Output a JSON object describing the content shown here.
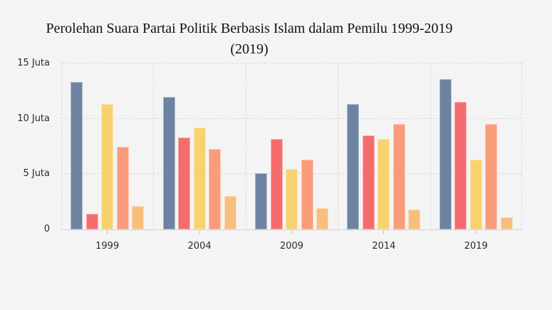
{
  "title": {
    "line1": "Perolehan Suara Partai Politik Berbasis Islam dalam Pemilu 1999-2019",
    "line2": "(2019)"
  },
  "chart_data": {
    "type": "bar",
    "title": "Perolehan Suara Partai Politik Berbasis Islam dalam Pemilu 1999-2019",
    "subtitle": "(2019)",
    "unit": "Juta",
    "categories": [
      "1999",
      "2004",
      "2009",
      "2014",
      "2019"
    ],
    "series": [
      {
        "name": "series-1",
        "color": "#6e83a2",
        "values": [
          13.3,
          12.0,
          5.1,
          11.3,
          13.6
        ]
      },
      {
        "name": "series-2",
        "color": "#f56c6c",
        "values": [
          1.4,
          8.3,
          8.2,
          8.5,
          11.5
        ]
      },
      {
        "name": "series-3",
        "color": "#f8d26e",
        "values": [
          11.3,
          9.2,
          5.5,
          8.2,
          6.3
        ]
      },
      {
        "name": "series-4",
        "color": "#fa9b7a",
        "values": [
          7.5,
          7.3,
          6.3,
          9.5,
          9.5
        ]
      },
      {
        "name": "series-5",
        "color": "#f9bd7e",
        "values": [
          2.1,
          3.0,
          1.9,
          1.8,
          1.1
        ]
      }
    ],
    "y_ticks": [
      {
        "label": "0",
        "value": 0
      },
      {
        "label": "5 Juta",
        "value": 5
      },
      {
        "label": "10 Juta",
        "value": 10
      },
      {
        "label": "15 Juta",
        "value": 15
      }
    ],
    "ylim": [
      0,
      15
    ],
    "grid": "dashed",
    "legend": "none",
    "colors": {
      "background": "#f4f4f5",
      "grid": "#d9d9de",
      "axis": "#d2d2d7",
      "tick": "#bfbfc4",
      "axis_text": "#2b2b2b",
      "title_text": "#121212"
    }
  }
}
